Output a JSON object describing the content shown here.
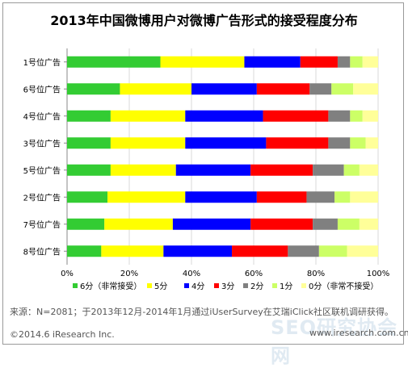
{
  "chart_data": {
    "type": "bar",
    "orientation": "horizontal",
    "stacked": true,
    "title": "2013年中国微博用户对微博广告形式的接受程度分布",
    "categories": [
      "1号位广告",
      "6号位广告",
      "4号位广告",
      "3号位广告",
      "5号位广告",
      "2号位广告",
      "7号位广告",
      "8号位广告"
    ],
    "xlim": [
      0,
      100
    ],
    "x_ticks": [
      "0%",
      "20%",
      "40%",
      "60%",
      "80%",
      "100%"
    ],
    "grid": true,
    "legend_position": "bottom",
    "series": [
      {
        "name": "6分（非常接受）",
        "color": "#33cc33",
        "values": [
          30,
          17,
          14,
          14,
          14,
          13,
          12,
          11
        ]
      },
      {
        "name": "5分",
        "color": "#ffff00",
        "values": [
          27,
          23,
          24,
          24,
          21,
          25,
          22,
          20
        ]
      },
      {
        "name": "4分",
        "color": "#0000ff",
        "values": [
          18,
          21,
          25,
          26,
          24,
          23,
          25,
          22
        ]
      },
      {
        "name": "3分",
        "color": "#ff0000",
        "values": [
          12,
          17,
          21,
          20,
          20,
          16,
          20,
          18
        ]
      },
      {
        "name": "2分",
        "color": "#808080",
        "values": [
          4,
          7,
          7,
          7,
          10,
          9,
          8,
          10
        ]
      },
      {
        "name": "1分",
        "color": "#ccff66",
        "values": [
          4,
          7,
          4,
          5,
          5,
          5,
          7,
          9
        ]
      },
      {
        "name": "0分（非常不接受）",
        "color": "#ffff99",
        "values": [
          5,
          8,
          5,
          4,
          6,
          9,
          6,
          10
        ]
      }
    ]
  },
  "source": "来源：N=2081；于2013年12月-2014年1月通过iUserSurvey在艾瑞iClick社区联机调研获得。",
  "copyright": "©2014.6 iResearch Inc.",
  "website": "www.iresearch.com.cn",
  "watermark": "SEO研究协会网"
}
